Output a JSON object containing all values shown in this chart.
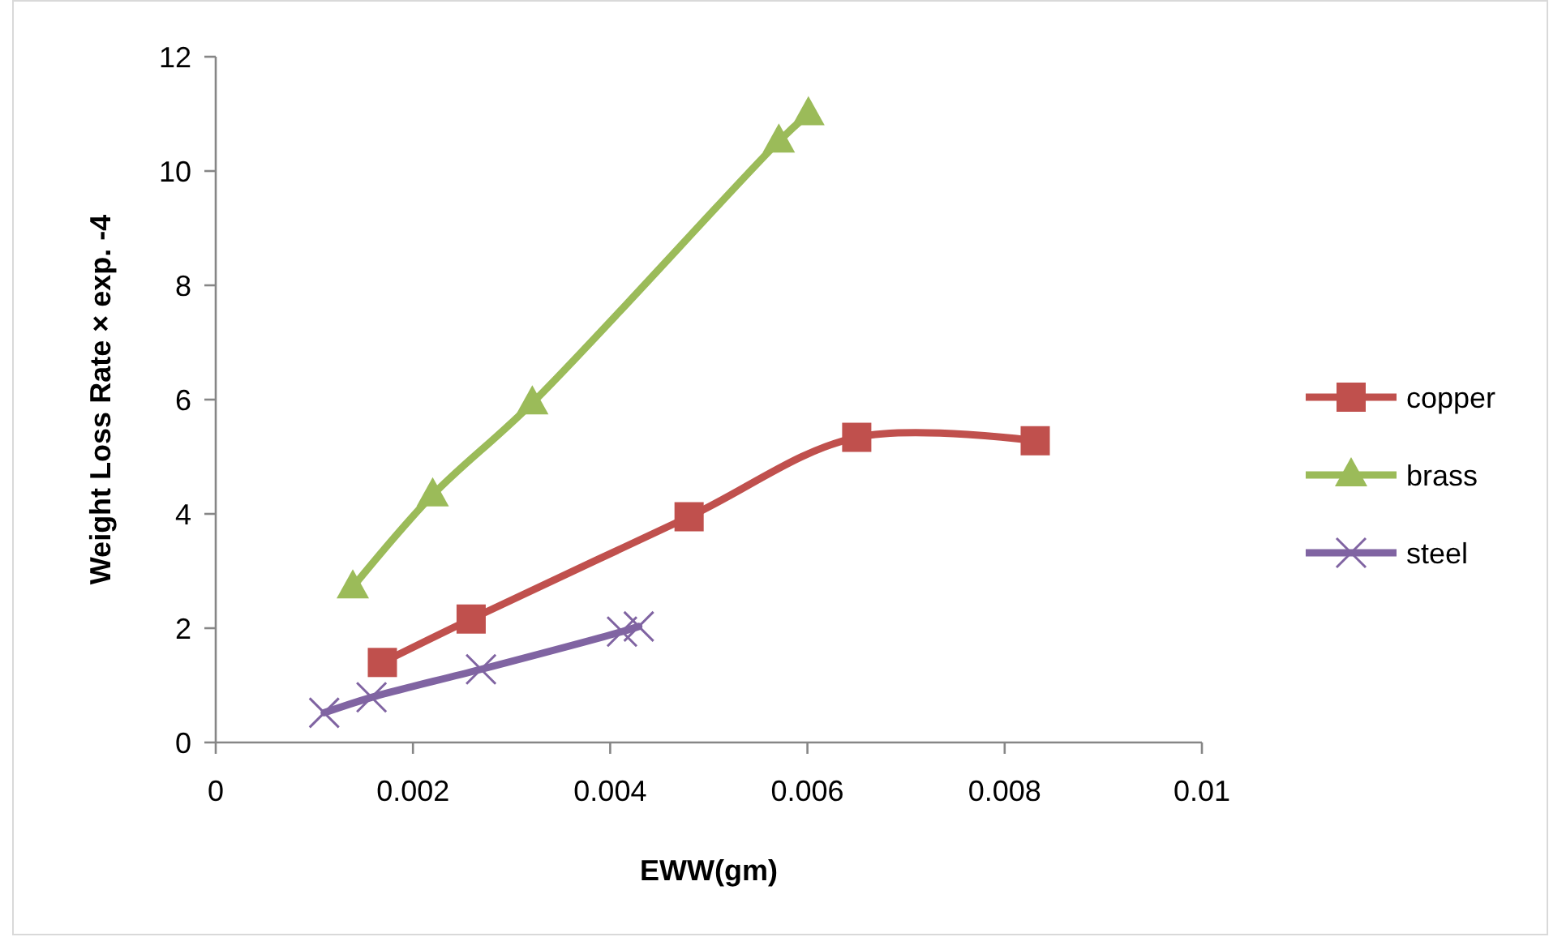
{
  "chart_data": {
    "type": "line",
    "xlabel": "EWW(gm)",
    "ylabel": "Weight Loss Rate × exp. -4",
    "xlim": [
      0,
      0.01
    ],
    "xticks": [
      0,
      0.002,
      0.004,
      0.006,
      0.008,
      0.01
    ],
    "ylim": [
      0,
      12
    ],
    "yticks": [
      0,
      2,
      4,
      6,
      8,
      10,
      12
    ],
    "grid": false,
    "legend": "right",
    "line_style": "solid",
    "series": [
      {
        "name": "copper",
        "color": "#c0504d",
        "marker": "square",
        "x": [
          0.00169,
          0.00259,
          0.0048,
          0.0065,
          0.00831
        ],
        "values": [
          1.4,
          2.16,
          3.95,
          5.34,
          5.28
        ]
      },
      {
        "name": "brass",
        "color": "#9bbb59",
        "marker": "triangle",
        "x": [
          0.00139,
          0.0022,
          0.00321,
          0.00571,
          0.00601
        ],
        "values": [
          2.72,
          4.33,
          5.94,
          10.52,
          11.0
        ]
      },
      {
        "name": "steel",
        "color": "#8064a2",
        "marker": "cross",
        "x": [
          0.0011,
          0.00158,
          0.00269,
          0.00412,
          0.00429
        ],
        "values": [
          0.52,
          0.79,
          1.28,
          1.94,
          2.03
        ]
      }
    ]
  }
}
